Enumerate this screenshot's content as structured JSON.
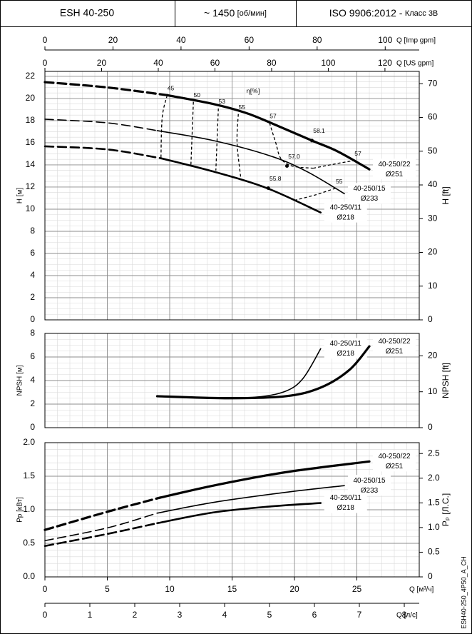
{
  "header": {
    "model": "ESH 40-250",
    "speed": "~ 1450",
    "speed_unit": "[об/мин]",
    "standard": "ISO 9906:2012 -",
    "class": "Класс 3B"
  },
  "code": "ESH40-250_4P50_A_CH",
  "chart_data": [
    {
      "type": "line",
      "ylabel": "H [м]",
      "y2label": "H [ft]",
      "eta_label": "η[%]",
      "xlim": [
        0,
        30
      ],
      "ylim": [
        0,
        22.45
      ],
      "yticks": [
        0,
        2,
        4,
        6,
        8,
        10,
        12,
        14,
        16,
        18,
        20,
        22
      ],
      "y2lim": [
        0,
        73.66
      ],
      "y2ticks": [
        0,
        10,
        20,
        30,
        40,
        50,
        60,
        70
      ],
      "grid": true,
      "minor_grid": {
        "x": 1,
        "y": 0.5
      },
      "x_imp": {
        "label": "Q [Imp gpm]",
        "lim": [
          0,
          110
        ],
        "ticks": [
          0,
          20,
          40,
          60,
          80,
          100
        ]
      },
      "x_us": {
        "label": "Q [US gpm]",
        "lim": [
          0,
          132.1
        ],
        "ticks": [
          0,
          20,
          40,
          60,
          80,
          100,
          120
        ]
      },
      "series": [
        {
          "name": "40-250/22",
          "diameter": "Ø251",
          "color": "#000000",
          "width": 3.2,
          "x": [
            0,
            5,
            9.8,
            13.5,
            16.1,
            18.1,
            21.4,
            23.5,
            26
          ],
          "dashed_values": [
            21.48,
            21.0,
            20.3,
            null,
            null,
            null,
            null,
            null,
            null
          ],
          "values": [
            null,
            null,
            20.3,
            19.5,
            18.7,
            17.8,
            16.2,
            15.2,
            13.6
          ]
        },
        {
          "name": "40-250/15",
          "diameter": "Ø233",
          "color": "#000000",
          "width": 1.6,
          "x": [
            0,
            5,
            9,
            13.5,
            18.1,
            21,
            24
          ],
          "dashed_values": [
            18.13,
            17.8,
            17.1,
            null,
            null,
            null,
            null
          ],
          "values": [
            null,
            null,
            17.1,
            16.2,
            14.8,
            13.4,
            11.4
          ]
        },
        {
          "name": "40-250/11",
          "diameter": "Ø218",
          "color": "#000000",
          "width": 2.6,
          "x": [
            0,
            5,
            9.3,
            13.5,
            17.8,
            22.1
          ],
          "dashed_values": [
            15.68,
            15.4,
            14.6,
            null,
            null,
            null
          ],
          "values": [
            null,
            null,
            14.6,
            13.4,
            11.9,
            9.7
          ]
        }
      ],
      "efficiency_lines": [
        {
          "label": "45",
          "x": [
            9.8,
            9.4,
            9.3
          ],
          "values": [
            20.3,
            18.3,
            14.6
          ]
        },
        {
          "label": "50",
          "x": [
            11.9,
            11.7
          ],
          "values": [
            19.7,
            14.0
          ]
        },
        {
          "label": "53",
          "x": [
            13.9,
            13.7
          ],
          "values": [
            19.1,
            13.5
          ]
        },
        {
          "label": "55",
          "x": [
            15.5,
            15.4,
            15.7
          ],
          "values": [
            18.6,
            16.0,
            12.8
          ]
        },
        {
          "label": "57",
          "x": [
            18.0,
            18.5,
            18.9,
            19.8,
            21.5
          ],
          "values": [
            17.8,
            16.0,
            14.6,
            13.9,
            13.7
          ]
        },
        {
          "label": "57",
          "x": [
            21.5,
            23.3,
            24.8
          ],
          "values": [
            13.7,
            14.1,
            14.4
          ]
        },
        {
          "label": "55",
          "x": [
            20.0,
            21.7,
            23.3
          ],
          "values": [
            10.8,
            11.3,
            11.9
          ]
        }
      ],
      "bep_points": [
        {
          "label": "58.1",
          "x": 21.4,
          "value": 16.2
        },
        {
          "label": "57.0",
          "x": 19.4,
          "value": 13.9
        },
        {
          "label": "55.8",
          "x": 17.9,
          "value": 11.9
        }
      ]
    },
    {
      "type": "line",
      "ylabel": "NPSH [м]",
      "y2label": "NPSH [ft]",
      "xlim": [
        0,
        30
      ],
      "ylim": [
        0,
        8
      ],
      "yticks": [
        0,
        2,
        4,
        6,
        8
      ],
      "y2lim": [
        0,
        26.25
      ],
      "y2ticks": [
        0,
        10,
        20
      ],
      "grid": true,
      "minor_grid": {
        "x": 1,
        "y": 0.5
      },
      "series": [
        {
          "name": "40-250/11",
          "diameter": "Ø218",
          "color": "#000000",
          "width": 1.6,
          "x": [
            9,
            13.5,
            17,
            19.3,
            20.7,
            22.1
          ],
          "values": [
            2.67,
            2.55,
            2.6,
            3.1,
            4.2,
            6.7
          ]
        },
        {
          "name": "40-250/22",
          "diameter": "Ø251",
          "color": "#000000",
          "width": 3.2,
          "x": [
            9,
            14.7,
            19.3,
            22.1,
            24.4,
            26
          ],
          "values": [
            2.67,
            2.5,
            2.67,
            3.4,
            4.9,
            6.9
          ]
        }
      ]
    },
    {
      "type": "line",
      "ylabel": "Pp [кВт]",
      "y2label": "Pₚ [Л.С.]",
      "xlabel": "Q [м³/ч]",
      "xlim": [
        0,
        30
      ],
      "xticks": [
        0,
        5,
        10,
        15,
        20,
        25
      ],
      "ylim": [
        0,
        2
      ],
      "yticks": [
        {
          "value": 0,
          "label": "0.0"
        },
        0.5,
        {
          "value": 1,
          "label": "1.0"
        },
        1.5,
        {
          "value": 2,
          "label": "2.0"
        }
      ],
      "y2lim": [
        0,
        2.72
      ],
      "y2ticks": [
        0,
        0.5,
        {
          "value": 1,
          "label": "1.0"
        },
        1.5,
        {
          "value": 2,
          "label": "2.0"
        },
        2.5
      ],
      "grid": true,
      "minor_grid": {
        "x": 1,
        "y": 0.1
      },
      "x_ls": {
        "label": "Q [л/с]",
        "lim": [
          0,
          8.333
        ],
        "ticks": [
          0,
          1,
          2,
          3,
          4,
          5,
          6,
          7,
          8
        ]
      },
      "series": [
        {
          "name": "40-250/22",
          "diameter": "Ø251",
          "color": "#000000",
          "width": 3.2,
          "x": [
            0,
            5,
            9,
            13.5,
            19.3,
            26
          ],
          "dashed_values": [
            0.7,
            0.97,
            1.17,
            null,
            null,
            null
          ],
          "values": [
            null,
            null,
            1.17,
            1.36,
            1.56,
            1.72
          ]
        },
        {
          "name": "40-250/15",
          "diameter": "Ø233",
          "color": "#000000",
          "width": 1.6,
          "x": [
            0,
            5,
            9,
            13.5,
            19.3,
            24
          ],
          "dashed_values": [
            0.54,
            0.73,
            0.95,
            null,
            null,
            null
          ],
          "values": [
            null,
            null,
            0.95,
            1.11,
            1.26,
            1.36
          ]
        },
        {
          "name": "40-250/11",
          "diameter": "Ø218",
          "color": "#000000",
          "width": 2.6,
          "x": [
            0,
            5,
            9,
            13.5,
            18.1,
            22.1
          ],
          "dashed_values": [
            0.46,
            0.64,
            0.8,
            null,
            null,
            null
          ],
          "values": [
            null,
            null,
            0.8,
            0.96,
            1.05,
            1.1
          ]
        }
      ]
    }
  ]
}
